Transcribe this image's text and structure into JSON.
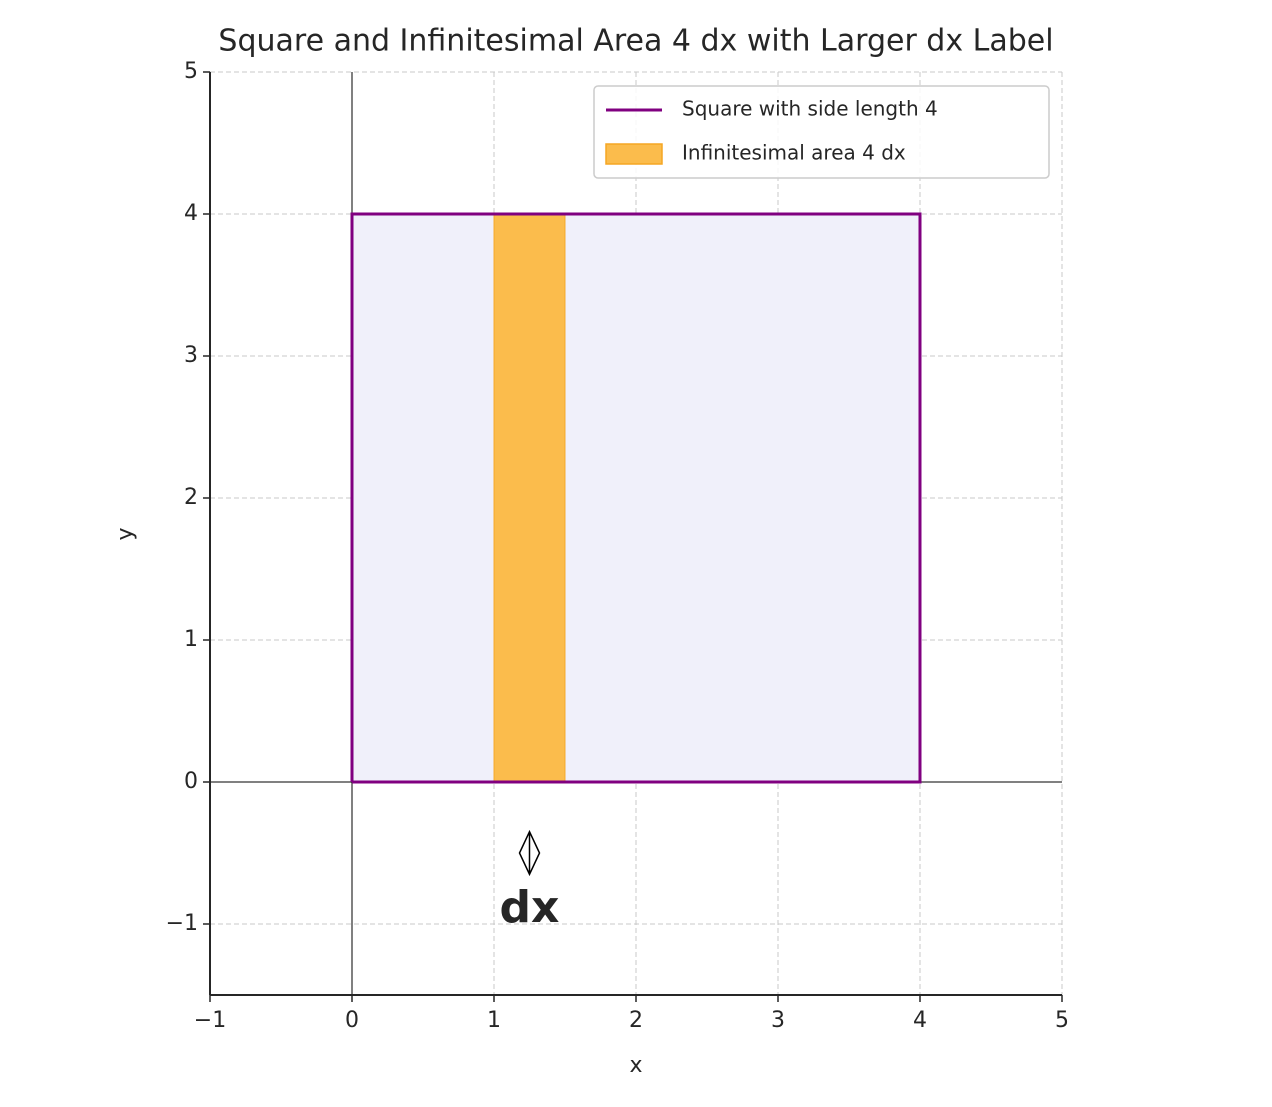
{
  "chart_data": {
    "type": "geometry",
    "title": "Square and Infinitesimal Area 4 dx with Larger dx Label",
    "xlabel": "x",
    "ylabel": "y",
    "xlim": [
      -1,
      5
    ],
    "ylim": [
      -1.5,
      5
    ],
    "xticks": [
      {
        "value": -1,
        "label": "−1"
      },
      0,
      1,
      2,
      3,
      4,
      5
    ],
    "yticks": [
      {
        "value": -1,
        "label": "−1"
      },
      0,
      1,
      2,
      3,
      4,
      5
    ],
    "grid": true,
    "legend": "upper right",
    "series": [
      {
        "name": "Square with side length 4",
        "color": "#800080",
        "fill": "#f0f0fa",
        "x": [
          0,
          4,
          4,
          0,
          0
        ],
        "values": [
          0,
          0,
          4,
          4,
          0
        ]
      },
      {
        "name": "Infinitesimal area 4 dx",
        "color": "#fbbc4c",
        "x": [
          1,
          1.5
        ],
        "values": [
          4,
          4
        ]
      }
    ],
    "annotation": {
      "text": "dx",
      "x": 1.25,
      "y": -0.9,
      "arrow": [
        -0.35,
        -0.65
      ]
    }
  }
}
